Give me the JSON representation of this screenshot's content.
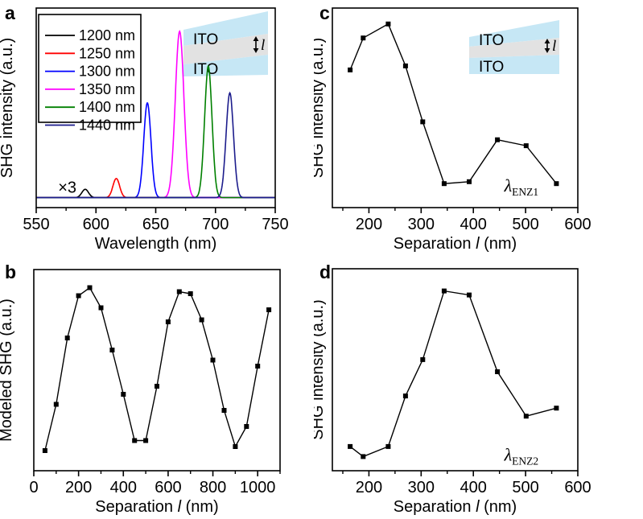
{
  "figure": {
    "background": "#ffffff",
    "panel_letters": {
      "a": "a",
      "b": "b",
      "c": "c",
      "d": "d"
    }
  },
  "chart_data": [
    {
      "id": "a",
      "panel_label": "a",
      "type": "line",
      "description": "SHG spectra for different pump wavelengths",
      "xlabel": {
        "pre": "Wavelength (nm)",
        "italic": "",
        "post": ""
      },
      "ylabel": "SHG intensity (a.u.)",
      "xlim": [
        550,
        750
      ],
      "ylim": [
        -0.06,
        1.14
      ],
      "x_major_ticks": [
        550,
        600,
        650,
        700,
        750
      ],
      "x_minor_ticks": [
        575,
        625,
        675,
        725
      ],
      "grid": false,
      "legend": {
        "position": "top-left",
        "show": true
      },
      "series": [
        {
          "name": "1200 nm",
          "color": "#000000",
          "peak_center_nm": 591,
          "peak_amplitude": 0.05,
          "peak_sigma_nm": 2.8
        },
        {
          "name": "1250 nm",
          "color": "#ff0000",
          "peak_center_nm": 617,
          "peak_amplitude": 0.115,
          "peak_sigma_nm": 2.8
        },
        {
          "name": "1300 nm",
          "color": "#0000ff",
          "peak_center_nm": 643,
          "peak_amplitude": 0.57,
          "peak_sigma_nm": 3.0
        },
        {
          "name": "1350 nm",
          "color": "#ff00ff",
          "peak_center_nm": 670,
          "peak_amplitude": 1.0,
          "peak_sigma_nm": 3.6
        },
        {
          "name": "1400 nm",
          "color": "#008000",
          "peak_center_nm": 694,
          "peak_amplitude": 0.79,
          "peak_sigma_nm": 3.1
        },
        {
          "name": "1440 nm",
          "color": "#1c1c8c",
          "peak_center_nm": 712,
          "peak_amplitude": 0.63,
          "peak_sigma_nm": 3.1
        }
      ],
      "annotations": [
        {
          "text": "×3",
          "x": 576,
          "y": 0.03
        }
      ],
      "inset": {
        "labels": [
          "ITO",
          "ITO"
        ],
        "gap_label": "l",
        "band_color": "#c6e7f5",
        "gap_color": "#e2e2e2"
      }
    },
    {
      "id": "b",
      "panel_label": "b",
      "type": "scatter-line",
      "description": "Modeled SHG versus ITO separation",
      "xlabel": {
        "pre": "Separation ",
        "italic": "l",
        "post": " (nm)"
      },
      "ylabel": "Modeled SHG (a.u.)",
      "xlim": [
        0,
        1100
      ],
      "ylim": [
        0,
        1
      ],
      "x_major_ticks": [
        0,
        200,
        400,
        600,
        800,
        1000
      ],
      "x_minor_ticks": [
        100,
        300,
        500,
        700,
        900,
        1100
      ],
      "grid": false,
      "marker": "square",
      "color": "#000000",
      "x": [
        50,
        100,
        150,
        200,
        250,
        300,
        350,
        400,
        450,
        500,
        550,
        600,
        650,
        700,
        750,
        800,
        850,
        900,
        950,
        1000,
        1050
      ],
      "y": [
        0.1,
        0.33,
        0.66,
        0.87,
        0.91,
        0.81,
        0.6,
        0.38,
        0.15,
        0.15,
        0.42,
        0.74,
        0.89,
        0.88,
        0.75,
        0.55,
        0.3,
        0.12,
        0.22,
        0.52,
        0.8
      ],
      "annotations": []
    },
    {
      "id": "c",
      "panel_label": "c",
      "type": "scatter-line",
      "description": "Measured SHG intensity versus separation at first ENZ wavelength",
      "xlabel": {
        "pre": "Separation ",
        "italic": "l",
        "post": " (nm)"
      },
      "ylabel": "SHG intensity (a.u.)",
      "xlim": [
        130,
        600
      ],
      "ylim": [
        0,
        1
      ],
      "x_major_ticks": [
        200,
        300,
        400,
        500,
        600
      ],
      "x_minor_ticks": [
        150,
        250,
        350,
        450,
        550
      ],
      "grid": false,
      "marker": "square",
      "color": "#000000",
      "x": [
        164,
        189,
        237,
        270,
        303,
        344,
        392,
        446,
        501,
        559
      ],
      "y": [
        0.69,
        0.85,
        0.92,
        0.71,
        0.43,
        0.12,
        0.13,
        0.34,
        0.31,
        0.12
      ],
      "annotations": [
        {
          "symbol": "λ",
          "subscript": "ENZ1",
          "x": 492,
          "y": 0.08
        }
      ],
      "inset": {
        "labels": [
          "ITO",
          "ITO"
        ],
        "gap_label": "l",
        "band_color": "#c6e7f5",
        "gap_color": "#e2e2e2"
      }
    },
    {
      "id": "d",
      "panel_label": "d",
      "type": "scatter-line",
      "description": "Measured SHG intensity versus separation at second ENZ wavelength",
      "xlabel": {
        "pre": "Separation ",
        "italic": "l",
        "post": " (nm)"
      },
      "ylabel": "SHG intensity (a.u.)",
      "xlim": [
        130,
        600
      ],
      "ylim": [
        0,
        1
      ],
      "x_major_ticks": [
        200,
        300,
        400,
        500,
        600
      ],
      "x_minor_ticks": [
        150,
        250,
        350,
        450,
        550
      ],
      "grid": false,
      "marker": "square",
      "color": "#000000",
      "x": [
        164,
        189,
        237,
        270,
        303,
        344,
        392,
        446,
        501,
        559
      ],
      "y": [
        0.12,
        0.07,
        0.12,
        0.37,
        0.55,
        0.89,
        0.87,
        0.49,
        0.27,
        0.31
      ],
      "annotations": [
        {
          "symbol": "λ",
          "subscript": "ENZ2",
          "x": 492,
          "y": 0.05
        }
      ]
    }
  ]
}
